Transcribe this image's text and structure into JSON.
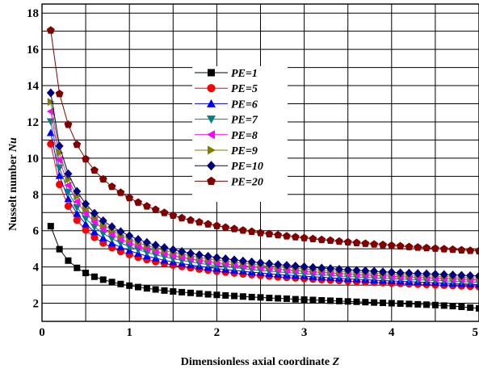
{
  "chart_data": {
    "type": "line",
    "xlabel": "Dimensionless axial coordinate",
    "xlabel_var": "Z",
    "ylabel": "Nusselt number",
    "ylabel_var": "Nu",
    "xlim": [
      0,
      5
    ],
    "ylim": [
      1,
      18.5
    ],
    "x_ticks": [
      0,
      1,
      2,
      3,
      4,
      5
    ],
    "x_tick_labels": [
      "0",
      "1",
      "2",
      "3",
      "4",
      "5"
    ],
    "y_ticks": [
      2,
      4,
      6,
      8,
      10,
      12,
      14,
      16,
      18
    ],
    "y_tick_labels": [
      "2",
      "4",
      "6",
      "8",
      "10",
      "12",
      "14",
      "16",
      "18"
    ],
    "grid": true,
    "legend_position": "center-left",
    "x": [
      0.1,
      0.2,
      0.3,
      0.4,
      0.5,
      0.6,
      0.7,
      0.8,
      0.9,
      1.0,
      1.1,
      1.2,
      1.3,
      1.4,
      1.5,
      1.6,
      1.7,
      1.8,
      1.9,
      2.0,
      2.1,
      2.2,
      2.3,
      2.4,
      2.5,
      2.6,
      2.7,
      2.8,
      2.9,
      3.0,
      3.1,
      3.2,
      3.3,
      3.4,
      3.5,
      3.6,
      3.7,
      3.8,
      3.9,
      4.0,
      4.1,
      4.2,
      4.3,
      4.4,
      4.5,
      4.6,
      4.7,
      4.8,
      4.9,
      5.0
    ],
    "series": [
      {
        "name": "PE=1",
        "color": "#000000",
        "marker": "square",
        "values": [
          6.25,
          4.98,
          4.35,
          3.95,
          3.67,
          3.46,
          3.3,
          3.17,
          3.06,
          2.97,
          2.89,
          2.82,
          2.76,
          2.7,
          2.65,
          2.61,
          2.57,
          2.53,
          2.49,
          2.46,
          2.43,
          2.4,
          2.37,
          2.34,
          2.32,
          2.29,
          2.27,
          2.25,
          2.22,
          2.2,
          2.18,
          2.16,
          2.14,
          2.12,
          2.1,
          2.08,
          2.06,
          2.04,
          2.02,
          2.0,
          1.98,
          1.96,
          1.94,
          1.92,
          1.9,
          1.87,
          1.84,
          1.8,
          1.76,
          1.72
        ]
      },
      {
        "name": "PE=5",
        "color": "#ff0000",
        "marker": "circle",
        "values": [
          10.78,
          8.55,
          7.35,
          6.58,
          6.04,
          5.63,
          5.32,
          5.06,
          4.85,
          4.68,
          4.53,
          4.4,
          4.29,
          4.19,
          4.1,
          4.02,
          3.95,
          3.88,
          3.82,
          3.76,
          3.71,
          3.66,
          3.61,
          3.57,
          3.53,
          3.49,
          3.45,
          3.42,
          3.39,
          3.36,
          3.33,
          3.3,
          3.27,
          3.25,
          3.22,
          3.2,
          3.17,
          3.15,
          3.13,
          3.11,
          3.09,
          3.07,
          3.05,
          3.03,
          3.01,
          2.99,
          2.97,
          2.95,
          2.93,
          2.91
        ]
      },
      {
        "name": "PE=6",
        "color": "#0000ff",
        "marker": "triangle-up",
        "values": [
          11.4,
          9.03,
          7.75,
          6.94,
          6.36,
          5.93,
          5.59,
          5.31,
          5.09,
          4.9,
          4.74,
          4.6,
          4.48,
          4.37,
          4.28,
          4.19,
          4.11,
          4.04,
          3.97,
          3.91,
          3.86,
          3.81,
          3.76,
          3.71,
          3.67,
          3.63,
          3.59,
          3.55,
          3.52,
          3.49,
          3.46,
          3.43,
          3.4,
          3.37,
          3.35,
          3.32,
          3.3,
          3.27,
          3.25,
          3.23,
          3.21,
          3.19,
          3.17,
          3.15,
          3.13,
          3.11,
          3.09,
          3.07,
          3.05,
          3.03
        ]
      },
      {
        "name": "PE=7",
        "color": "#007f7f",
        "marker": "triangle-down",
        "values": [
          12.02,
          9.48,
          8.14,
          7.28,
          6.67,
          6.21,
          5.85,
          5.56,
          5.32,
          5.12,
          4.95,
          4.8,
          4.67,
          4.56,
          4.45,
          4.36,
          4.28,
          4.2,
          4.13,
          4.07,
          4.01,
          3.96,
          3.91,
          3.86,
          3.81,
          3.77,
          3.73,
          3.69,
          3.66,
          3.62,
          3.59,
          3.56,
          3.53,
          3.5,
          3.47,
          3.45,
          3.42,
          3.4,
          3.37,
          3.35,
          3.33,
          3.31,
          3.29,
          3.27,
          3.25,
          3.23,
          3.21,
          3.19,
          3.17,
          3.15
        ]
      },
      {
        "name": "PE=8",
        "color": "#ff00ff",
        "marker": "triangle-left",
        "values": [
          12.58,
          9.9,
          8.5,
          7.6,
          6.96,
          6.48,
          6.1,
          5.8,
          5.54,
          5.33,
          5.15,
          5.0,
          4.86,
          4.74,
          4.63,
          4.54,
          4.45,
          4.37,
          4.3,
          4.23,
          4.17,
          4.11,
          4.06,
          4.01,
          3.96,
          3.92,
          3.88,
          3.84,
          3.8,
          3.77,
          3.73,
          3.7,
          3.67,
          3.64,
          3.61,
          3.58,
          3.56,
          3.53,
          3.51,
          3.48,
          3.46,
          3.44,
          3.42,
          3.4,
          3.38,
          3.36,
          3.34,
          3.32,
          3.3,
          3.28
        ]
      },
      {
        "name": "PE=9",
        "color": "#7f7f00",
        "marker": "triangle-right",
        "values": [
          13.1,
          10.3,
          8.83,
          7.89,
          7.23,
          6.73,
          6.33,
          6.01,
          5.75,
          5.53,
          5.34,
          5.18,
          5.04,
          4.91,
          4.8,
          4.7,
          4.61,
          4.52,
          4.45,
          4.38,
          4.32,
          4.26,
          4.2,
          4.15,
          4.1,
          4.05,
          4.01,
          3.97,
          3.93,
          3.89,
          3.86,
          3.82,
          3.79,
          3.76,
          3.73,
          3.7,
          3.67,
          3.65,
          3.62,
          3.6,
          3.58,
          3.55,
          3.53,
          3.51,
          3.49,
          3.47,
          3.45,
          3.43,
          3.41,
          3.39
        ]
      },
      {
        "name": "PE=10",
        "color": "#000080",
        "marker": "diamond",
        "values": [
          13.6,
          10.67,
          9.14,
          8.17,
          7.48,
          6.96,
          6.55,
          6.22,
          5.95,
          5.72,
          5.52,
          5.35,
          5.2,
          5.07,
          4.95,
          4.85,
          4.75,
          4.67,
          4.59,
          4.52,
          4.45,
          4.39,
          4.33,
          4.28,
          4.23,
          4.18,
          4.13,
          4.09,
          4.05,
          4.01,
          3.97,
          3.94,
          3.91,
          3.87,
          3.84,
          3.81,
          3.79,
          3.76,
          3.73,
          3.71,
          3.68,
          3.66,
          3.64,
          3.62,
          3.6,
          3.58,
          3.56,
          3.54,
          3.52,
          3.5
        ]
      },
      {
        "name": "PE=20",
        "color": "#800000",
        "marker": "pentagon",
        "values": [
          17.05,
          13.55,
          11.85,
          10.75,
          9.95,
          9.33,
          8.84,
          8.43,
          8.1,
          7.81,
          7.56,
          7.35,
          7.16,
          6.99,
          6.84,
          6.7,
          6.58,
          6.47,
          6.36,
          6.27,
          6.18,
          6.1,
          6.02,
          5.95,
          5.88,
          5.82,
          5.76,
          5.7,
          5.65,
          5.6,
          5.55,
          5.5,
          5.46,
          5.41,
          5.37,
          5.33,
          5.29,
          5.25,
          5.22,
          5.18,
          5.15,
          5.11,
          5.08,
          5.05,
          5.02,
          4.99,
          4.96,
          4.93,
          4.9,
          4.88
        ]
      }
    ]
  }
}
